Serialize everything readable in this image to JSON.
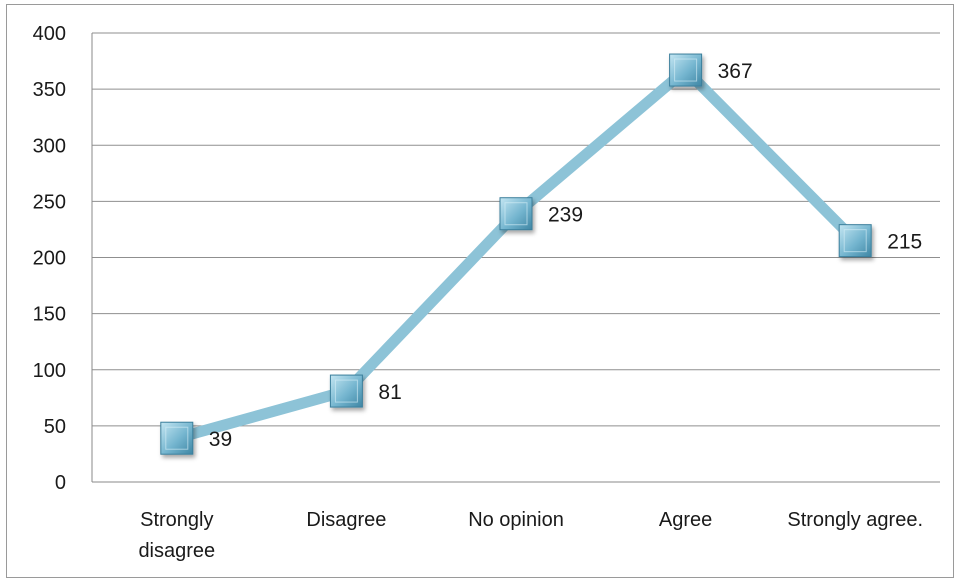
{
  "chart_data": {
    "type": "line",
    "categories": [
      "Strongly disagree",
      "Disagree",
      "No opinion",
      "Agree",
      "Strongly agree."
    ],
    "values": [
      39,
      81,
      239,
      367,
      215
    ],
    "data_labels": [
      "39",
      "81",
      "239",
      "367",
      "215"
    ],
    "ylim": [
      0,
      400
    ],
    "yticks": [
      0,
      50,
      100,
      150,
      200,
      250,
      300,
      350,
      400
    ],
    "grid": true,
    "legend": "none",
    "line_color": "#8dc3d7",
    "marker_color": "#6fb3cf",
    "marker_shape": "square"
  }
}
